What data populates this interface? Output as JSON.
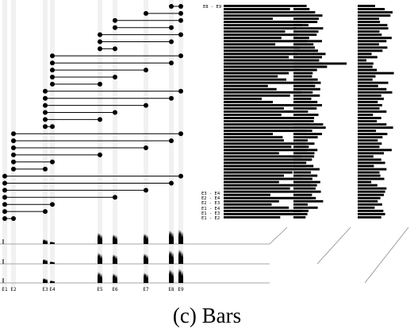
{
  "caption": "(c) Bars",
  "exon_labels": [
    "E1",
    "E2",
    "E3",
    "E4",
    "E5",
    "E6",
    "E7",
    "E8",
    "E9"
  ],
  "junction_legend_top": "E8 - E9",
  "junction_legend_bottom": [
    "E3 - E4",
    "E2 - E4",
    "E2 - E3",
    "E1 - E4",
    "E1 - E3",
    "E1 - E2"
  ],
  "junctions": [
    [
      "E8",
      "E9"
    ],
    [
      "E7",
      "E9"
    ],
    [
      "E6",
      "E9"
    ],
    [
      "E6",
      "E8"
    ],
    [
      "E5",
      "E9"
    ],
    [
      "E5",
      "E8"
    ],
    [
      "E5",
      "E6"
    ],
    [
      "E4",
      "E9"
    ],
    [
      "E4",
      "E8"
    ],
    [
      "E4",
      "E7"
    ],
    [
      "E4",
      "E6"
    ],
    [
      "E4",
      "E5"
    ],
    [
      "E3",
      "E9"
    ],
    [
      "E3",
      "E8"
    ],
    [
      "E3",
      "E7"
    ],
    [
      "E3",
      "E6"
    ],
    [
      "E3",
      "E5"
    ],
    [
      "E3",
      "E4"
    ],
    [
      "E2",
      "E9"
    ],
    [
      "E2",
      "E8"
    ],
    [
      "E2",
      "E7"
    ],
    [
      "E2",
      "E5"
    ],
    [
      "E2",
      "E4"
    ],
    [
      "E2",
      "E3"
    ],
    [
      "E1",
      "E9"
    ],
    [
      "E1",
      "E8"
    ],
    [
      "E1",
      "E7"
    ],
    [
      "E1",
      "E6"
    ],
    [
      "E1",
      "E4"
    ],
    [
      "E1",
      "E3"
    ],
    [
      "E1",
      "E2"
    ]
  ],
  "bar_columns": [
    [
      0.59,
      0.54,
      0.71,
      0.73,
      0.4,
      0.62,
      0.64,
      0.59,
      0.5,
      0.6,
      0.47,
      0.68,
      0.42,
      0.62,
      0.76,
      0.6,
      0.53,
      0.77,
      1.0,
      0.84,
      0.62,
      0.53,
      0.44,
      0.51,
      0.79,
      0.36,
      0.43,
      0.63,
      0.54,
      0.31,
      0.4,
      0.8,
      0.49,
      0.57,
      0.47,
      0.62,
      0.57,
      0.7,
      0.83,
      0.72,
      0.4,
      0.48,
      0.49,
      0.67,
      0.55,
      0.68,
      0.45,
      0.63,
      0.71,
      0.58,
      0.67,
      0.59,
      0.56,
      0.49,
      0.64,
      0.45,
      0.71,
      0.54,
      0.58,
      0.38,
      0.75,
      0.45,
      0.39,
      0.53,
      0.64,
      0.62,
      0.46
    ],
    [
      0.37,
      0.45,
      0.61,
      0.81,
      0.71,
      0.67,
      0.42,
      0.83,
      0.7,
      0.65,
      0.44,
      0.8,
      0.56,
      0.6,
      0.69,
      0.9,
      0.8,
      0.72,
      0.83,
      0.94,
      0.66,
      0.54,
      0.52,
      0.68,
      0.55,
      0.61,
      0.75,
      0.54,
      0.74,
      0.5,
      0.67,
      0.53,
      0.65,
      0.41,
      0.7,
      0.58,
      0.57,
      0.83,
      0.69,
      0.37,
      0.8,
      0.68,
      0.4,
      0.59,
      0.43,
      0.67,
      0.59,
      0.58,
      0.52,
      0.36,
      0.56,
      0.73,
      0.49,
      0.67,
      0.53,
      0.75,
      0.66,
      0.62,
      0.77,
      0.52,
      0.49,
      0.83,
      0.4,
      0.68,
      0.42,
      0.39,
      0.34
    ],
    [
      0.4,
      0.62,
      0.8,
      0.75,
      0.49,
      0.51,
      0.68,
      0.7,
      0.5,
      0.55,
      0.78,
      0.66,
      0.49,
      0.68,
      0.57,
      0.32,
      0.45,
      0.2,
      0.36,
      0.34,
      0.44,
      0.83,
      0.41,
      0.34,
      0.7,
      0.47,
      0.66,
      0.79,
      0.54,
      0.6,
      0.46,
      0.56,
      0.5,
      0.66,
      0.35,
      0.54,
      0.44,
      0.66,
      0.81,
      0.42,
      0.68,
      0.57,
      0.46,
      0.55,
      0.5,
      0.78,
      0.6,
      0.36,
      0.54,
      0.63,
      0.37,
      0.66,
      0.5,
      0.52,
      0.61,
      0.31,
      0.45,
      0.66,
      0.63,
      0.6,
      0.52,
      0.46,
      0.56,
      0.39,
      0.59,
      0.63,
      0.54
    ]
  ]
}
